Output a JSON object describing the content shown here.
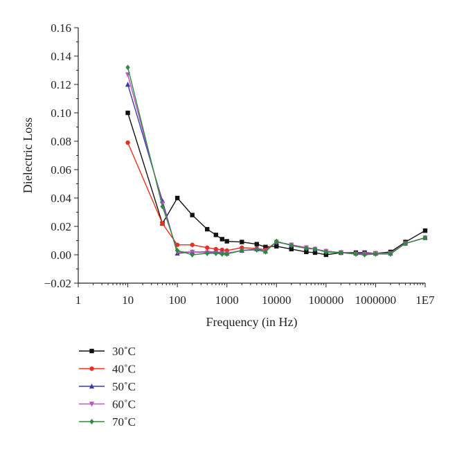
{
  "chart_data": {
    "type": "line",
    "title": "",
    "xlabel": "Frequency (in Hz)",
    "ylabel": "Dielectric Loss",
    "x_scale": "log",
    "xlim": [
      1,
      10000000
    ],
    "ylim": [
      -0.02,
      0.16
    ],
    "x_ticks": [
      {
        "value": 1,
        "label": "1"
      },
      {
        "value": 10,
        "label": "10"
      },
      {
        "value": 100,
        "label": "100"
      },
      {
        "value": 1000,
        "label": "1000"
      },
      {
        "value": 10000,
        "label": "10000"
      },
      {
        "value": 100000,
        "label": "100000"
      },
      {
        "value": 1000000,
        "label": "1000000"
      },
      {
        "value": 10000000,
        "label": "1E7"
      }
    ],
    "y_ticks": [
      {
        "value": -0.02,
        "label": "−0.02"
      },
      {
        "value": 0.0,
        "label": "0.00"
      },
      {
        "value": 0.02,
        "label": "0.02"
      },
      {
        "value": 0.04,
        "label": "0.04"
      },
      {
        "value": 0.06,
        "label": "0.06"
      },
      {
        "value": 0.08,
        "label": "0.08"
      },
      {
        "value": 0.1,
        "label": "0.10"
      },
      {
        "value": 0.12,
        "label": "0.12"
      },
      {
        "value": 0.14,
        "label": "0.14"
      },
      {
        "value": 0.16,
        "label": "0.16"
      }
    ],
    "grid": false,
    "legend_position": "bottom-left",
    "x": [
      10,
      50,
      100,
      200,
      400,
      600,
      800,
      1000,
      2000,
      4000,
      6000,
      10000,
      20000,
      40000,
      60000,
      100000,
      200000,
      400000,
      600000,
      1000000,
      2000000,
      4000000,
      10000000
    ],
    "series": [
      {
        "name": "30˚C",
        "color": "#111111",
        "marker": "square",
        "values": [
          0.1,
          0.022,
          0.04,
          0.028,
          0.018,
          0.014,
          0.011,
          0.0095,
          0.009,
          0.0075,
          0.0055,
          0.006,
          0.004,
          0.002,
          0.0015,
          0.0,
          0.0015,
          0.0015,
          0.0015,
          0.001,
          0.002,
          0.009,
          0.017
        ]
      },
      {
        "name": "40˚C",
        "color": "#e8301f",
        "marker": "circle",
        "values": [
          0.079,
          0.022,
          0.007,
          0.007,
          0.005,
          0.004,
          0.0035,
          0.003,
          0.005,
          0.0045,
          0.0035,
          0.009,
          0.007,
          0.005,
          0.004,
          0.0025,
          0.0015,
          0.001,
          0.001,
          0.001,
          0.001,
          0.008,
          0.012
        ]
      },
      {
        "name": "50˚C",
        "color": "#3a3aa8",
        "marker": "triangle-up",
        "values": [
          0.12,
          0.038,
          0.001,
          0.002,
          0.002,
          0.002,
          0.0015,
          0.001,
          0.003,
          0.004,
          0.0025,
          0.009,
          0.007,
          0.005,
          0.004,
          0.0025,
          0.0015,
          0.001,
          0.001,
          0.001,
          0.001,
          0.008,
          0.012
        ]
      },
      {
        "name": "60˚C",
        "color": "#c050c0",
        "marker": "triangle-down",
        "values": [
          0.127,
          0.036,
          0.002,
          0.002,
          0.0015,
          0.0015,
          0.001,
          0.001,
          0.003,
          0.0035,
          0.0025,
          0.009,
          0.007,
          0.005,
          0.004,
          0.0025,
          0.0015,
          0.0005,
          0.0005,
          0.001,
          0.001,
          0.008,
          0.012
        ]
      },
      {
        "name": "70˚C",
        "color": "#2e8b3a",
        "marker": "diamond",
        "values": [
          0.132,
          0.034,
          0.003,
          0.0,
          0.001,
          0.001,
          0.0005,
          0.0005,
          0.003,
          0.0035,
          0.002,
          0.0095,
          0.0065,
          0.0045,
          0.004,
          0.002,
          0.0015,
          0.0005,
          0.0,
          0.0005,
          0.0005,
          0.008,
          0.012
        ]
      }
    ]
  }
}
